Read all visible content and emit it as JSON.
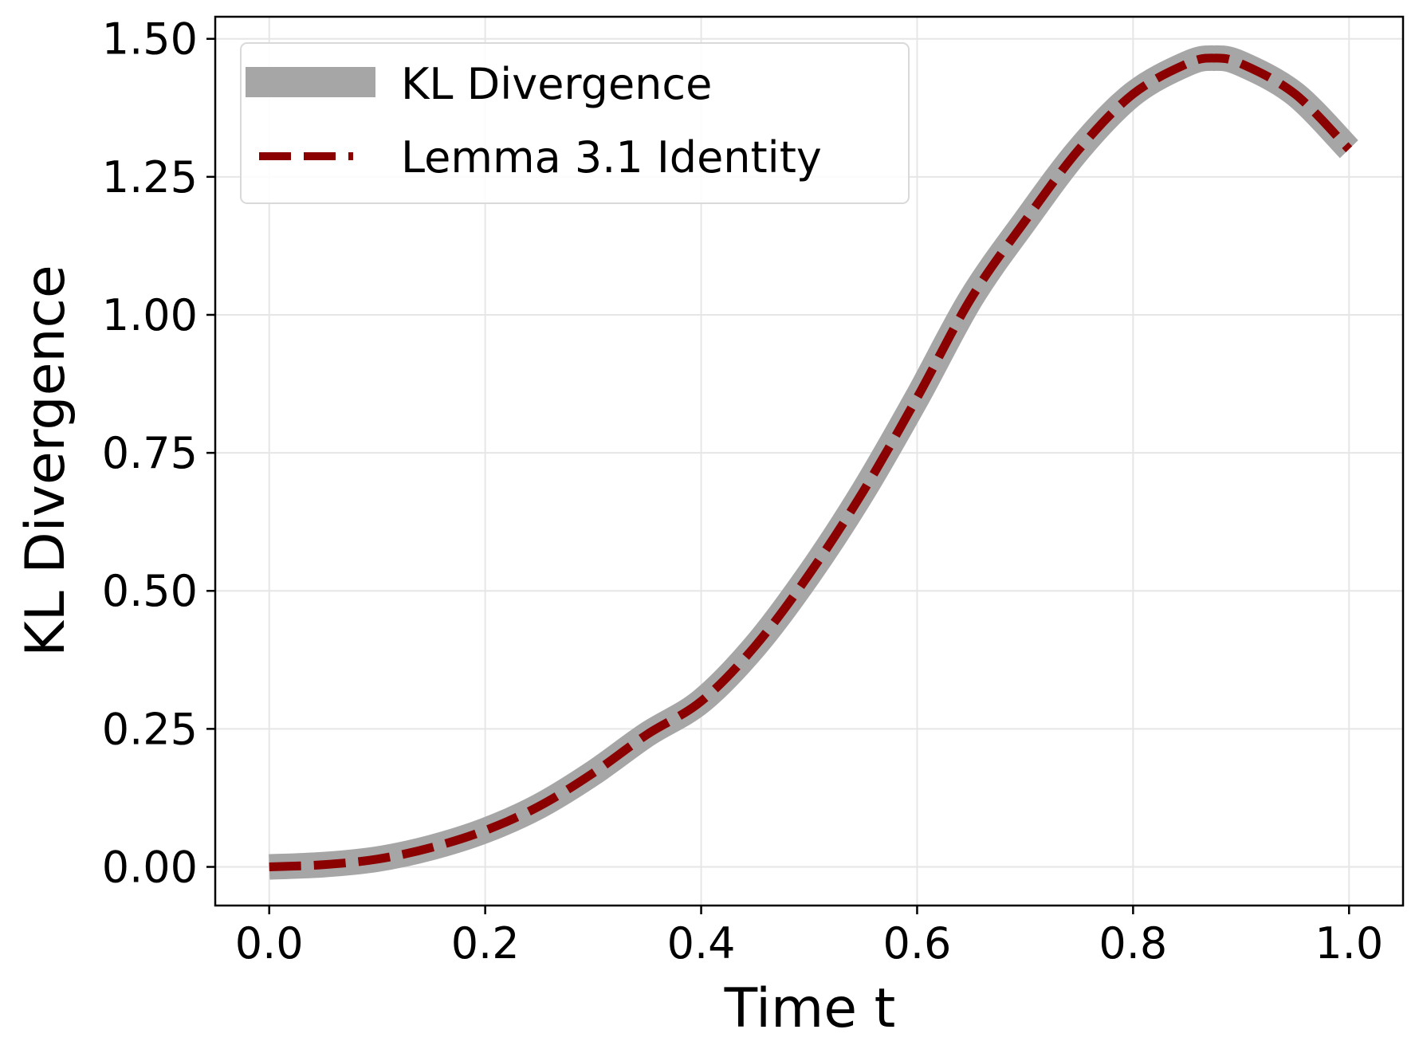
{
  "colors": {
    "kl_line": "#a6a6a6",
    "lemma_line": "#8b0000",
    "grid": "#e6e6e6",
    "axis": "#000000",
    "legend_border": "#d9d9d9"
  },
  "chart_data": {
    "type": "line",
    "title": "",
    "xlabel": "Time t",
    "ylabel": "KL Divergence",
    "xlim": [
      -0.05,
      1.05
    ],
    "ylim": [
      -0.07,
      1.54
    ],
    "xticks": [
      0.0,
      0.2,
      0.4,
      0.6,
      0.8,
      1.0
    ],
    "xtick_labels": [
      "0.0",
      "0.2",
      "0.4",
      "0.6",
      "0.8",
      "1.0"
    ],
    "yticks": [
      0.0,
      0.25,
      0.5,
      0.75,
      1.0,
      1.25,
      1.5
    ],
    "ytick_labels": [
      "0.00",
      "0.25",
      "0.50",
      "0.75",
      "1.00",
      "1.25",
      "1.50"
    ],
    "grid": true,
    "legend_position": "upper-left",
    "series": [
      {
        "name": "KL Divergence",
        "style": "solid-thick",
        "x": [
          0.0,
          0.05,
          0.1,
          0.15,
          0.2,
          0.25,
          0.3,
          0.35,
          0.4,
          0.45,
          0.5,
          0.55,
          0.6,
          0.65,
          0.7,
          0.75,
          0.8,
          0.85,
          0.875,
          0.9,
          0.95,
          1.0
        ],
        "y": [
          0.0,
          0.004,
          0.014,
          0.035,
          0.066,
          0.11,
          0.17,
          0.24,
          0.3,
          0.4,
          0.53,
          0.68,
          0.85,
          1.03,
          1.17,
          1.3,
          1.4,
          1.455,
          1.465,
          1.455,
          1.4,
          1.3
        ]
      },
      {
        "name": "Lemma 3.1 Identity",
        "style": "dashed",
        "x": [
          0.0,
          0.05,
          0.1,
          0.15,
          0.2,
          0.25,
          0.3,
          0.35,
          0.4,
          0.45,
          0.5,
          0.55,
          0.6,
          0.65,
          0.7,
          0.75,
          0.8,
          0.85,
          0.875,
          0.9,
          0.95,
          1.0
        ],
        "y": [
          0.0,
          0.004,
          0.014,
          0.035,
          0.066,
          0.11,
          0.17,
          0.24,
          0.3,
          0.4,
          0.53,
          0.68,
          0.85,
          1.03,
          1.17,
          1.3,
          1.4,
          1.455,
          1.465,
          1.455,
          1.4,
          1.3
        ]
      }
    ]
  }
}
